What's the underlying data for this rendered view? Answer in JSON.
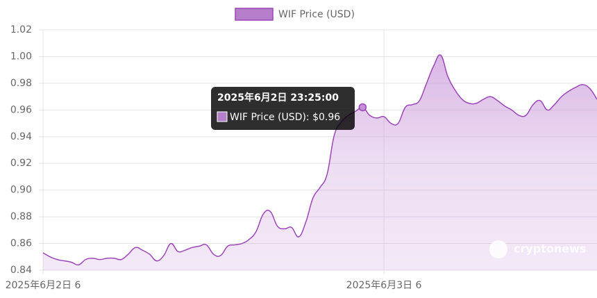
{
  "chart_data": {
    "type": "line",
    "categories": [
      "2025年6月2日 6",
      null,
      null,
      null,
      null,
      null,
      null,
      null,
      null,
      null,
      null,
      null,
      null,
      null,
      null,
      null,
      null,
      null,
      null,
      null,
      null,
      null,
      null,
      null,
      null,
      null,
      null,
      null,
      null,
      null,
      null,
      null,
      null,
      null,
      null,
      null,
      null,
      null,
      null,
      null,
      null,
      null,
      null,
      null,
      null,
      null,
      null,
      null,
      "2025年6月3日 6",
      null,
      null,
      null,
      null,
      null,
      null,
      null,
      null,
      null,
      null,
      null,
      null,
      null,
      null,
      null,
      null,
      null,
      null,
      null,
      null,
      null,
      null,
      null,
      null,
      null,
      null,
      null,
      null,
      null,
      null
    ],
    "series": [
      {
        "name": "WIF Price (USD)",
        "color": "#9b45b8",
        "fill": "#c48fd6",
        "values": [
          0.853,
          0.85,
          0.848,
          0.847,
          0.846,
          0.844,
          0.848,
          0.849,
          0.848,
          0.849,
          0.849,
          0.848,
          0.852,
          0.857,
          0.855,
          0.852,
          0.847,
          0.851,
          0.86,
          0.854,
          0.855,
          0.857,
          0.858,
          0.859,
          0.852,
          0.851,
          0.858,
          0.859,
          0.86,
          0.863,
          0.869,
          0.882,
          0.884,
          0.873,
          0.871,
          0.872,
          0.865,
          0.876,
          0.894,
          0.902,
          0.912,
          0.941,
          0.951,
          0.956,
          0.959,
          0.962,
          0.956,
          0.954,
          0.955,
          0.95,
          0.95,
          0.962,
          0.964,
          0.967,
          0.98,
          0.993,
          1.001,
          0.985,
          0.975,
          0.968,
          0.965,
          0.965,
          0.968,
          0.97,
          0.967,
          0.963,
          0.96,
          0.956,
          0.956,
          0.964,
          0.967,
          0.96,
          0.964,
          0.97,
          0.974,
          0.977,
          0.979,
          0.976,
          0.968
        ]
      }
    ],
    "ylim": [
      0.84,
      1.02
    ],
    "yticks": [
      0.84,
      0.86,
      0.88,
      {
        "value": 0.9,
        "label": "0.90"
      },
      0.92,
      0.94,
      0.96,
      0.98,
      {
        "value": 1,
        "label": "1.00"
      },
      1.02
    ],
    "grid": true,
    "legend": "top",
    "tooltip": {
      "title": "2025年6月2日 23:25:00",
      "label": "WIF Price (USD): $0.96"
    },
    "watermark": "cryptonews"
  }
}
